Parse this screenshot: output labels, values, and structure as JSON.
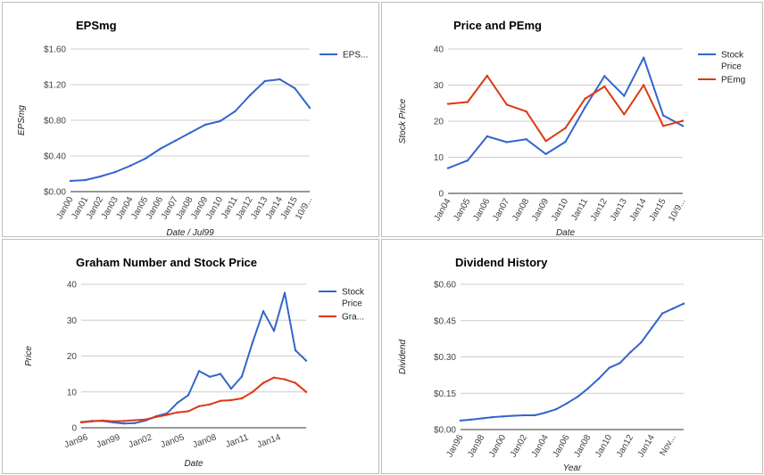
{
  "chart_data": [
    {
      "type": "line",
      "title": "EPSmg",
      "xlabel": "Date / Jul99",
      "ylabel": "EPSmg",
      "ylim": [
        0,
        1.6
      ],
      "yticks": [
        "$0.00",
        "$0.40",
        "$0.80",
        "$1.20",
        "$1.60"
      ],
      "x": [
        "Jan00",
        "Jan01",
        "Jan02",
        "Jan03",
        "Jan04",
        "Jan05",
        "Jan06",
        "Jan07",
        "Jan08",
        "Jan09",
        "Jan10",
        "Jan11",
        "Jan12",
        "Jan13",
        "Jan14",
        "Jan15",
        "10/9..."
      ],
      "legend_position": "right",
      "grid": true,
      "series": [
        {
          "name": "EPS...",
          "color": "#3366cc",
          "values": [
            0.12,
            0.13,
            0.17,
            0.22,
            0.29,
            0.37,
            0.48,
            0.57,
            0.66,
            0.75,
            0.79,
            0.9,
            1.08,
            1.24,
            1.26,
            1.16,
            0.94
          ]
        }
      ]
    },
    {
      "type": "line",
      "title": "Price and PEmg",
      "xlabel": "Date",
      "ylabel": "Stock Price",
      "ylim": [
        0,
        40
      ],
      "yticks": [
        "0",
        "10",
        "20",
        "30",
        "40"
      ],
      "x": [
        "Jan04",
        "Jan05",
        "Jan06",
        "Jan07",
        "Jan08",
        "Jan09",
        "Jan10",
        "Jan11",
        "Jan12",
        "Jan13",
        "Jan14",
        "Jan15",
        "10/9..."
      ],
      "legend_position": "right",
      "grid": true,
      "series": [
        {
          "name": "Stock Price",
          "color": "#3366cc",
          "values": [
            7.0,
            9.1,
            15.8,
            14.2,
            15.0,
            10.9,
            14.3,
            23.8,
            32.5,
            27.0,
            37.6,
            21.6,
            18.7
          ]
        },
        {
          "name": "PEmg",
          "color": "#dc3912",
          "values": [
            24.8,
            25.3,
            32.6,
            24.6,
            22.7,
            14.5,
            18.1,
            26.2,
            29.6,
            21.9,
            30.0,
            18.7,
            20.1
          ]
        }
      ]
    },
    {
      "type": "line",
      "title": "Graham Number and Stock Price",
      "xlabel": "Date",
      "ylabel": "Price",
      "ylim": [
        0,
        40
      ],
      "yticks": [
        "0",
        "10",
        "20",
        "30",
        "40"
      ],
      "x_ticklabels": [
        "Jan96",
        "Jan99",
        "Jan02",
        "Jan05",
        "Jan08",
        "Jan11",
        "Jan14"
      ],
      "legend_position": "right",
      "grid": true,
      "series": [
        {
          "name": "Stock Price",
          "color": "#3366cc",
          "values": [
            1.6,
            1.9,
            1.9,
            1.5,
            1.2,
            1.3,
            2.0,
            3.2,
            4.0,
            7.0,
            9.1,
            15.8,
            14.2,
            15.0,
            10.9,
            14.3,
            23.8,
            32.5,
            27.0,
            37.6,
            21.6,
            18.7
          ]
        },
        {
          "name": "Gra...",
          "color": "#dc3912",
          "values": [
            1.5,
            1.8,
            2.0,
            1.8,
            1.9,
            2.1,
            2.3,
            3.0,
            3.6,
            4.3,
            4.6,
            6.0,
            6.5,
            7.5,
            7.7,
            8.2,
            10.0,
            12.5,
            14.0,
            13.5,
            12.5,
            10.0
          ]
        }
      ]
    },
    {
      "type": "line",
      "title": "Dividend History",
      "xlabel": "Year",
      "ylabel": "Dividend",
      "ylim": [
        0,
        0.6
      ],
      "yticks": [
        "$0.00",
        "$0.15",
        "$0.30",
        "$0.45",
        "$0.60"
      ],
      "x_ticklabels": [
        "Jan96",
        "Jan98",
        "Jan00",
        "Jan02",
        "Jan04",
        "Jan06",
        "Jan08",
        "Jan10",
        "Jan12",
        "Jan14",
        "Nov..."
      ],
      "grid": true,
      "series": [
        {
          "name": "",
          "color": "#3366cc",
          "values": [
            0.037,
            0.041,
            0.046,
            0.051,
            0.054,
            0.057,
            0.059,
            0.059,
            0.07,
            0.084,
            0.108,
            0.135,
            0.17,
            0.21,
            0.255,
            0.275,
            0.32,
            0.36,
            0.42,
            0.48,
            0.5,
            0.52
          ]
        }
      ]
    }
  ]
}
